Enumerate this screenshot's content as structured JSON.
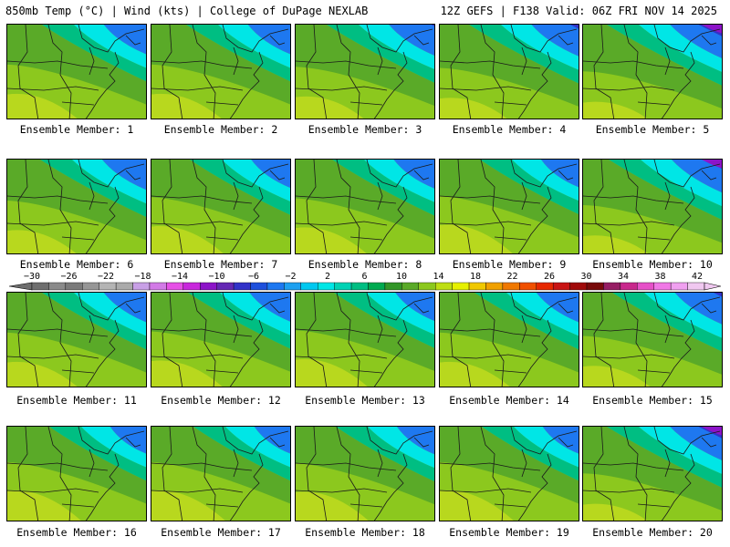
{
  "header": {
    "left": "850mb Temp (°C) | Wind (kts) | College of DuPage NEXLAB",
    "right": "12Z GEFS | F138 Valid: 06Z FRI NOV 14 2025"
  },
  "members": [
    {
      "label": "Ensemble Member: 1",
      "cold": 0.55
    },
    {
      "label": "Ensemble Member: 2",
      "cold": 0.55
    },
    {
      "label": "Ensemble Member: 3",
      "cold": 0.65
    },
    {
      "label": "Ensemble Member: 4",
      "cold": 0.7
    },
    {
      "label": "Ensemble Member: 5",
      "cold": 0.85
    },
    {
      "label": "Ensemble Member: 6",
      "cold": 0.6
    },
    {
      "label": "Ensemble Member: 7",
      "cold": 0.45
    },
    {
      "label": "Ensemble Member: 8",
      "cold": 0.5
    },
    {
      "label": "Ensemble Member: 9",
      "cold": 0.4
    },
    {
      "label": "Ensemble Member: 10",
      "cold": 0.8
    },
    {
      "label": "Ensemble Member: 11",
      "cold": 0.55
    },
    {
      "label": "Ensemble Member: 12",
      "cold": 0.5
    },
    {
      "label": "Ensemble Member: 13",
      "cold": 0.45
    },
    {
      "label": "Ensemble Member: 14",
      "cold": 0.55
    },
    {
      "label": "Ensemble Member: 15",
      "cold": 0.7
    },
    {
      "label": "Ensemble Member: 16",
      "cold": 0.35
    },
    {
      "label": "Ensemble Member: 17",
      "cold": 0.35
    },
    {
      "label": "Ensemble Member: 18",
      "cold": 0.4
    },
    {
      "label": "Ensemble Member: 19",
      "cold": 0.35
    },
    {
      "label": "Ensemble Member: 20",
      "cold": 0.85
    }
  ],
  "colorbar": {
    "ticks": [
      "-30",
      "-26",
      "-22",
      "-18",
      "-14",
      "-10",
      "-6",
      "-2",
      "2",
      "6",
      "10",
      "14",
      "18",
      "22",
      "26",
      "30",
      "34",
      "38",
      "42"
    ],
    "colors": [
      "#6e6e6e",
      "#8a8a8a",
      "#7a7a7a",
      "#969696",
      "#b4b4b4",
      "#aaaaaa",
      "#c8a0e6",
      "#d27ae6",
      "#e650e6",
      "#c828dc",
      "#8c14c8",
      "#6428b4",
      "#3232c8",
      "#1e50dc",
      "#1e78f0",
      "#1ea0f0",
      "#00c8f0",
      "#00e6e6",
      "#00d2b4",
      "#00be82",
      "#00aa50",
      "#329628",
      "#5aaa28",
      "#8cc81e",
      "#bede14",
      "#e6f000",
      "#f0c800",
      "#f0a000",
      "#f07800",
      "#f05000",
      "#e62800",
      "#c81414",
      "#a00a0a",
      "#780a0a",
      "#961e64",
      "#c8288c",
      "#e650c8",
      "#f078e6",
      "#f0a0f0",
      "#f0c8f0"
    ]
  }
}
